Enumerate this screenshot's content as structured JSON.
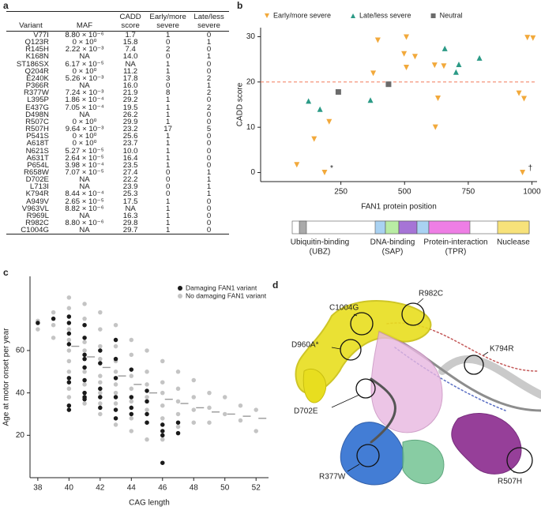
{
  "panel_labels": [
    "a",
    "b",
    "c",
    "d"
  ],
  "table": {
    "columns": [
      "Variant",
      "MAF",
      "CADD score",
      "Early/more severe",
      "Late/less severe"
    ],
    "rows": [
      [
        "V77I",
        "8.80 × 10⁻⁶",
        "1.7",
        "1",
        "0"
      ],
      [
        "Q123R",
        "0 × 10⁰",
        "15.8",
        "0",
        "1"
      ],
      [
        "R145H",
        "2.22 × 10⁻³",
        "7.4",
        "2",
        "0"
      ],
      [
        "K168N",
        "NA",
        "14.0",
        "0",
        "1"
      ],
      [
        "ST186SX",
        "6.17 × 10⁻⁵",
        "NA",
        "1",
        "0"
      ],
      [
        "Q204R",
        "0 × 10⁰",
        "11.2",
        "1",
        "0"
      ],
      [
        "E240K",
        "5.26 × 10⁻³",
        "17.8",
        "3",
        "2"
      ],
      [
        "P366R",
        "NA",
        "16.0",
        "0",
        "1"
      ],
      [
        "R377W",
        "7.24 × 10⁻³",
        "21.9",
        "8",
        "2"
      ],
      [
        "L395P",
        "1.86 × 10⁻⁴",
        "29.2",
        "1",
        "0"
      ],
      [
        "E437G",
        "7.05 × 10⁻⁴",
        "19.5",
        "1",
        "2"
      ],
      [
        "D498N",
        "NA",
        "26.2",
        "1",
        "0"
      ],
      [
        "R507C",
        "0 × 10⁰",
        "29.9",
        "1",
        "0"
      ],
      [
        "R507H",
        "9.64 × 10⁻³",
        "23.2",
        "17",
        "5"
      ],
      [
        "P541S",
        "0 × 10⁰",
        "25.6",
        "1",
        "0"
      ],
      [
        "A618T",
        "0 × 10⁰",
        "23.7",
        "1",
        "0"
      ],
      [
        "N621S",
        "5.27 × 10⁻⁵",
        "10.0",
        "1",
        "0"
      ],
      [
        "A631T",
        "2.64 × 10⁻⁵",
        "16.4",
        "1",
        "0"
      ],
      [
        "P654L",
        "3.98 × 10⁻⁴",
        "23.5",
        "1",
        "0"
      ],
      [
        "R658W",
        "7.07 × 10⁻⁵",
        "27.4",
        "0",
        "1"
      ],
      [
        "D702E",
        "NA",
        "22.2",
        "0",
        "1"
      ],
      [
        "L713I",
        "NA",
        "23.9",
        "0",
        "1"
      ],
      [
        "K794R",
        "8.44 × 10⁻⁴",
        "25.3",
        "0",
        "1"
      ],
      [
        "A949V",
        "2.65 × 10⁻⁵",
        "17.5",
        "1",
        "0"
      ],
      [
        "V963VL",
        "8.82 × 10⁻⁶",
        "NA",
        "1",
        "0"
      ],
      [
        "R969L",
        "NA",
        "16.3",
        "1",
        "0"
      ],
      [
        "R982C",
        "8.80 × 10⁻⁶",
        "29.8",
        "1",
        "0"
      ],
      [
        "C1004G",
        "NA",
        "29.7",
        "1",
        "0"
      ]
    ]
  },
  "chart_data": [
    {
      "type": "scatter",
      "x_label": "FAN1 protein position",
      "y_label": "CADD score",
      "xlim": [
        -65,
        1020
      ],
      "ylim": [
        -2,
        32
      ],
      "xticks": [
        250,
        500,
        750,
        1000
      ],
      "yticks": [
        0,
        10,
        20,
        30
      ],
      "legend": "top",
      "reference_line": 20,
      "reference_color": "#f4896b",
      "series": [
        {
          "name": "Early/more severe",
          "color": "#f2a93b",
          "marker": "triangle-down",
          "x": [
            77,
            145,
            186,
            204,
            377,
            395,
            498,
            507,
            507,
            541,
            618,
            621,
            631,
            654,
            949,
            963,
            969,
            982,
            1004
          ],
          "values": [
            1.7,
            7.4,
            0,
            11.2,
            21.9,
            29.2,
            26.2,
            29.9,
            23.2,
            25.6,
            23.7,
            10,
            16.4,
            23.5,
            17.5,
            0,
            16.3,
            29.8,
            29.7
          ]
        },
        {
          "name": "Late/less severe",
          "color": "#2b9a86",
          "marker": "triangle-up",
          "x": [
            123,
            168,
            366,
            658,
            702,
            713,
            794
          ],
          "values": [
            15.8,
            14,
            16,
            27.4,
            22.2,
            23.9,
            25.3
          ]
        },
        {
          "name": "Neutral",
          "color": "#6b6b6b",
          "marker": "square",
          "x": [
            240,
            437
          ],
          "values": [
            17.8,
            19.5
          ]
        }
      ],
      "annotations": [
        {
          "text": "*",
          "x": 186,
          "y": 0
        },
        {
          "text": "†",
          "x": 963,
          "y": 0
        }
      ],
      "domains": [
        {
          "label": [
            "Ubiquitin-binding",
            "(UBZ)"
          ]
        },
        {
          "label": [
            "DNA-binding",
            "(SAP)"
          ]
        },
        {
          "label": [
            "Protein-interaction",
            "(TPR)"
          ]
        },
        {
          "label": [
            "Nuclease"
          ]
        }
      ]
    },
    {
      "type": "scatter",
      "x_label": "CAG length",
      "y_label": "Age at motor onset per year",
      "xlim": [
        37.5,
        52.8
      ],
      "ylim": [
        0,
        95
      ],
      "xticks": [
        38,
        40,
        42,
        44,
        46,
        48,
        50,
        52
      ],
      "yticks": [
        20,
        40,
        60
      ],
      "legend": "upper right",
      "series": [
        {
          "name": "No damaging FAN1 variant",
          "color": "#c4c4c4",
          "marker": "circle",
          "x": [
            38,
            38,
            39,
            39,
            39,
            40,
            40,
            40,
            40,
            40,
            40,
            40,
            40,
            40,
            41,
            41,
            41,
            41,
            41,
            41,
            41,
            42,
            42,
            42,
            42,
            42,
            42,
            42,
            42,
            42,
            43,
            43,
            43,
            43,
            43,
            43,
            43,
            43,
            44,
            44,
            44,
            44,
            44,
            44,
            44,
            45,
            45,
            45,
            45,
            45,
            45,
            45,
            46,
            46,
            46,
            46,
            46,
            46,
            47,
            47,
            47,
            47,
            47,
            48,
            48,
            48,
            48,
            49,
            49,
            49,
            50,
            50,
            51,
            51,
            52,
            52
          ],
          "values": [
            70,
            74,
            72,
            78,
            66,
            85,
            80,
            70,
            65,
            60,
            55,
            50,
            42,
            38,
            82,
            75,
            64,
            60,
            50,
            44,
            35,
            78,
            70,
            62,
            56,
            48,
            45,
            40,
            35,
            30,
            72,
            62,
            55,
            50,
            44,
            40,
            35,
            25,
            65,
            58,
            48,
            42,
            36,
            28,
            22,
            60,
            50,
            44,
            38,
            32,
            26,
            18,
            55,
            45,
            40,
            34,
            28,
            18,
            50,
            42,
            36,
            30,
            24,
            46,
            38,
            32,
            26,
            40,
            33,
            26,
            38,
            30,
            34,
            27,
            32,
            22
          ]
        },
        {
          "name": "Damaging FAN1 variant",
          "color": "#1a1a1a",
          "marker": "circle",
          "x": [
            38,
            39,
            40,
            40,
            40,
            40,
            40,
            40,
            40,
            40,
            41,
            41,
            41,
            41,
            41,
            41,
            41,
            41,
            41,
            42,
            42,
            42,
            42,
            42,
            43,
            43,
            43,
            43,
            43,
            43,
            44,
            44,
            44,
            44,
            45,
            45,
            45,
            45,
            46,
            46,
            46,
            46,
            47,
            47
          ],
          "values": [
            73,
            75,
            76,
            73,
            68,
            63,
            47,
            45,
            34,
            32,
            72,
            66,
            58,
            56,
            52,
            46,
            40,
            38,
            37,
            60,
            54,
            42,
            38,
            33,
            65,
            56,
            47,
            38,
            32,
            28,
            51,
            38,
            33,
            30,
            41,
            36,
            30,
            26,
            25,
            22,
            20,
            7,
            26,
            21
          ]
        }
      ],
      "means": {
        "color": "#9a9a9a",
        "x": [
          40,
          41,
          42,
          43,
          44,
          45,
          46,
          47,
          48,
          49,
          50,
          51,
          52
        ],
        "values": [
          62,
          57,
          52,
          48,
          44,
          40,
          37,
          35,
          33,
          31,
          30,
          29,
          28
        ]
      }
    }
  ],
  "structure": {
    "labels": [
      "R982C",
      "C1004G",
      "D960A*",
      "K794R",
      "D702E",
      "R377W",
      "R507H"
    ]
  }
}
